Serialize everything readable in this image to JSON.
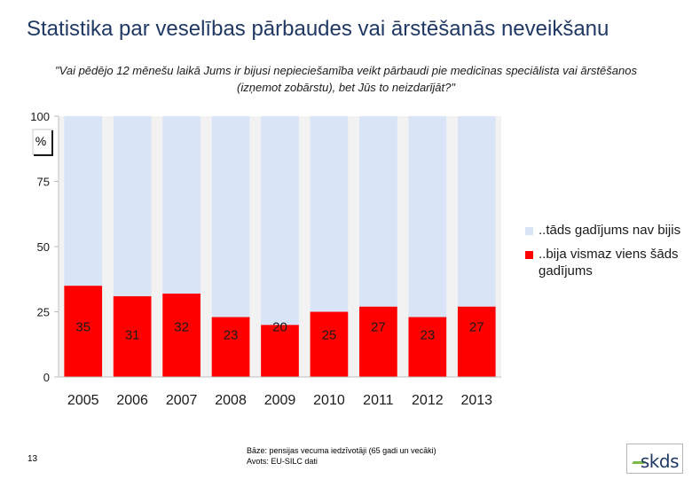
{
  "page": {
    "title": "Statistika par veselības pārbaudes vai ārstēšanās neveikšanu",
    "subtitle": "\"Vai pēdējo 12 mēnešu laikā Jums ir bijusi nepieciešamība veikt pārbaudi pie medicīnas speciālista vai ārstēšanos (izņemot zobārstu), bet Jūs to neizdarījāt?\"",
    "page_number": "13",
    "footer_base": "Bāze: pensijas vecuma iedzīvotāji (65 gadi un vecāki)",
    "footer_source": "Avots: EU-SILC dati",
    "logo_text": "skds",
    "unit_label": "%"
  },
  "chart_data": {
    "type": "bar",
    "stacked": true,
    "title": "Statistika par veselības pārbaudes vai ārstēšanās neveikšanu",
    "xlabel": "",
    "ylabel": "%",
    "ylim": [
      0,
      100
    ],
    "yticks": [
      0,
      25,
      50,
      75,
      100
    ],
    "grid": false,
    "legend_position": "right",
    "categories": [
      "2005",
      "2006",
      "2007",
      "2008",
      "2009",
      "2010",
      "2011",
      "2012",
      "2013"
    ],
    "series": [
      {
        "name": "..bija vismaz viens šāds gadījums",
        "color": "#ff0000",
        "values": [
          35,
          31,
          32,
          23,
          20,
          25,
          27,
          23,
          27
        ],
        "labels": [
          "35",
          "31",
          "32",
          "23",
          "20",
          "25",
          "27",
          "23",
          "27"
        ]
      },
      {
        "name": "..tāds gadījums nav bijis",
        "color": "#d9e4f7",
        "values": [
          65,
          69,
          68,
          77,
          80,
          75,
          73,
          77,
          73
        ]
      }
    ]
  }
}
